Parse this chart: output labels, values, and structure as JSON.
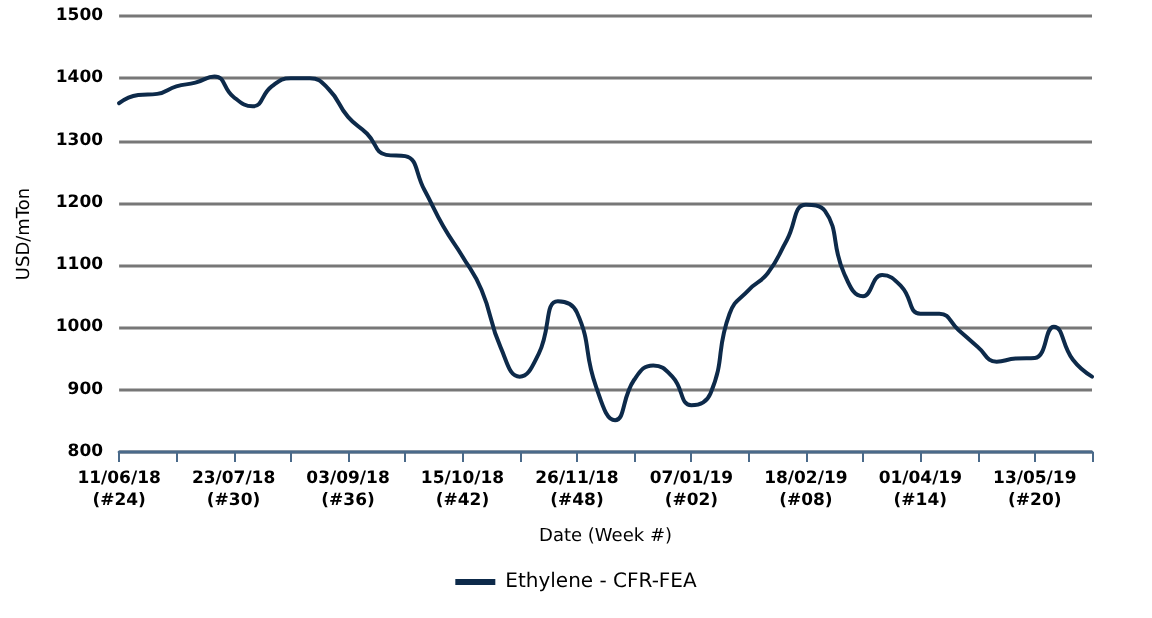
{
  "chart_data": {
    "type": "line",
    "xlabel": "Date (Week #)",
    "ylabel": "USD/mTon",
    "x": [
      "2018-06-11",
      "2018-06-18",
      "2018-06-25",
      "2018-07-02",
      "2018-07-09",
      "2018-07-16",
      "2018-07-23",
      "2018-07-30",
      "2018-08-06",
      "2018-08-13",
      "2018-08-20",
      "2018-08-27",
      "2018-09-03",
      "2018-09-10",
      "2018-09-17",
      "2018-09-24",
      "2018-10-01",
      "2018-10-08",
      "2018-10-15",
      "2018-10-22",
      "2018-10-29",
      "2018-11-05",
      "2018-11-12",
      "2018-11-19",
      "2018-11-26",
      "2018-12-03",
      "2018-12-10",
      "2018-12-17",
      "2018-12-24",
      "2018-12-31",
      "2019-01-07",
      "2019-01-14",
      "2019-01-21",
      "2019-01-28",
      "2019-02-04",
      "2019-02-11",
      "2019-02-18",
      "2019-02-25",
      "2019-03-04",
      "2019-03-11",
      "2019-03-18",
      "2019-03-25",
      "2019-04-01",
      "2019-04-08",
      "2019-04-15",
      "2019-04-22",
      "2019-04-29",
      "2019-05-06",
      "2019-05-13",
      "2019-05-20",
      "2019-05-27",
      "2019-06-03"
    ],
    "series": [
      {
        "name": "Ethylene - CFR-FEA",
        "color": "#0d2a4a",
        "values": [
          1360,
          1373,
          1375,
          1387,
          1393,
          1403,
          1370,
          1355,
          1387,
          1400,
          1400,
          1382,
          1338,
          1311,
          1277,
          1275,
          1221,
          1162,
          1114,
          1060,
          968,
          921,
          958,
          1042,
          1024,
          905,
          851,
          916,
          939,
          921,
          875,
          894,
          1022,
          1060,
          1087,
          1140,
          1197,
          1187,
          1087,
          1050,
          1084,
          1066,
          1022,
          1022,
          996,
          969,
          945,
          950,
          951,
          1001,
          948,
          921
        ]
      }
    ],
    "xlim": [
      "2018-06-11",
      "2019-06-03"
    ],
    "xticks": [
      {
        "value": "2018-06-11",
        "label": "11/06/18 (#24)"
      },
      {
        "value": "2018-07-02",
        "label": null
      },
      {
        "value": "2018-07-23",
        "label": "23/07/18 (#30)"
      },
      {
        "value": "2018-08-13",
        "label": null
      },
      {
        "value": "2018-09-03",
        "label": "03/09/18 (#36)"
      },
      {
        "value": "2018-09-24",
        "label": null
      },
      {
        "value": "2018-10-15",
        "label": "15/10/18 (#42)"
      },
      {
        "value": "2018-11-05",
        "label": null
      },
      {
        "value": "2018-11-26",
        "label": "26/11/18 (#48)"
      },
      {
        "value": "2018-12-17",
        "label": null
      },
      {
        "value": "2019-01-07",
        "label": "07/01/19 (#02)"
      },
      {
        "value": "2019-01-28",
        "label": null
      },
      {
        "value": "2019-02-18",
        "label": "18/02/19 (#08)"
      },
      {
        "value": "2019-03-11",
        "label": null
      },
      {
        "value": "2019-04-01",
        "label": "01/04/19 (#14)"
      },
      {
        "value": "2019-04-22",
        "label": null
      },
      {
        "value": "2019-05-13",
        "label": "13/05/19 (#20)"
      },
      {
        "value": "2019-06-03",
        "label": null
      }
    ],
    "ylim": [
      800,
      1500
    ],
    "yticks": [
      800,
      900,
      1000,
      1100,
      1200,
      1300,
      1400,
      1500
    ],
    "grid": "y",
    "legend": "bottom",
    "marker": "none",
    "line_style": "solid"
  }
}
